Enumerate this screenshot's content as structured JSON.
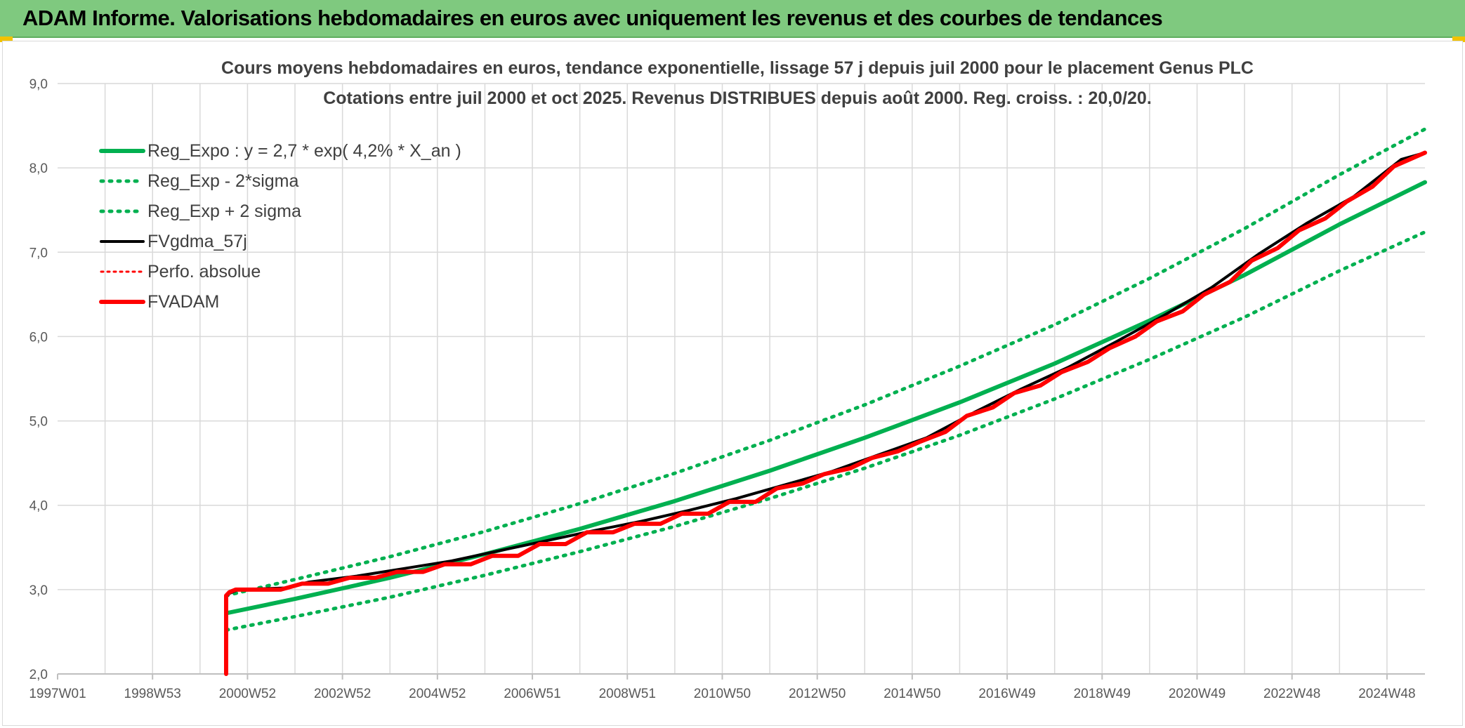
{
  "banner": {
    "title": "ADAM Informe. Valorisations hebdomadaires en euros avec uniquement les revenus et des courbes de tendances"
  },
  "colors": {
    "banner_bg": "#7fc97f",
    "reg_expo": "#00b050",
    "fvadam": "#ff0000",
    "fvgdma": "#000000",
    "grid": "#d9d9d9",
    "corner_accent": "#f2c200"
  },
  "chart_data": {
    "type": "line",
    "title": "Cours moyens hebdomadaires en euros, tendance exponentielle, lissage 57 j depuis juil 2000 pour le placement Genus PLC",
    "subtitle": "Cotations entre juil 2000 et oct 2025. Revenus DISTRIBUES depuis août 2000. Reg. croiss. : 20,0/20.",
    "xlabel": "",
    "ylabel": "",
    "ylim": [
      2.0,
      9.0
    ],
    "xlim": [
      1997.0,
      2025.8
    ],
    "grid": true,
    "legend_position": "top-left",
    "y_ticks": [
      "2,0",
      "3,0",
      "4,0",
      "5,0",
      "6,0",
      "7,0",
      "8,0",
      "9,0"
    ],
    "x_ticks": [
      "1997W01",
      "1998W53",
      "2000W52",
      "2002W52",
      "2004W52",
      "2006W51",
      "2008W51",
      "2010W50",
      "2012W50",
      "2014W50",
      "2016W49",
      "2018W49",
      "2020W49",
      "2022W48",
      "2024W48"
    ],
    "x_tick_years": [
      1997.0,
      1999.0,
      2001.0,
      2003.0,
      2005.0,
      2007.0,
      2009.0,
      2011.0,
      2013.0,
      2015.0,
      2017.0,
      2019.0,
      2021.0,
      2023.0,
      2025.0
    ],
    "legend": [
      {
        "key": "reg_expo",
        "label": "Reg_Expo : y = 2,7 * exp( 4,2% *  X_an )",
        "style": "solid-green"
      },
      {
        "key": "reg_minus",
        "label": "Reg_Exp - 2*sigma",
        "style": "dotted-green"
      },
      {
        "key": "reg_plus",
        "label": "Reg_Exp + 2 sigma",
        "style": "dotted-green"
      },
      {
        "key": "fvgdma",
        "label": "FVgdma_57j",
        "style": "solid-black"
      },
      {
        "key": "perfo",
        "label": "Perfo. absolue",
        "style": "dotted-red"
      },
      {
        "key": "fvadam",
        "label": "FVADAM",
        "style": "solid-red"
      }
    ],
    "series": [
      {
        "name": "Reg_Expo : y = 2,7 * exp( 4,2% *  X_an )",
        "x": [
          2000.55,
          2002.0,
          2004.0,
          2006.0,
          2008.0,
          2010.0,
          2012.0,
          2014.0,
          2016.0,
          2018.0,
          2020.0,
          2022.0,
          2024.0,
          2025.8
        ],
        "y": [
          2.72,
          2.89,
          3.14,
          3.42,
          3.72,
          4.05,
          4.41,
          4.8,
          5.22,
          5.68,
          6.19,
          6.73,
          7.33,
          7.83
        ]
      },
      {
        "name": "Reg_Exp - 2*sigma",
        "x": [
          2000.55,
          2002.0,
          2004.0,
          2006.0,
          2008.0,
          2010.0,
          2012.0,
          2014.0,
          2016.0,
          2018.0,
          2020.0,
          2022.0,
          2024.0,
          2025.8
        ],
        "y": [
          2.52,
          2.68,
          2.91,
          3.17,
          3.45,
          3.75,
          4.08,
          4.44,
          4.83,
          5.26,
          5.73,
          6.23,
          6.78,
          7.24
        ]
      },
      {
        "name": "Reg_Exp + 2 sigma",
        "x": [
          2000.55,
          2002.0,
          2004.0,
          2006.0,
          2008.0,
          2010.0,
          2012.0,
          2014.0,
          2016.0,
          2018.0,
          2020.0,
          2022.0,
          2024.0,
          2025.8
        ],
        "y": [
          2.93,
          3.12,
          3.39,
          3.69,
          4.02,
          4.38,
          4.77,
          5.19,
          5.65,
          6.14,
          6.69,
          7.28,
          7.92,
          8.46
        ]
      },
      {
        "name": "FVADAM",
        "x": [
          2000.55,
          2000.55,
          2000.62,
          2000.75,
          2001.7,
          2002.15,
          2002.7,
          2003.15,
          2003.7,
          2004.15,
          2004.7,
          2005.15,
          2005.7,
          2006.15,
          2006.7,
          2007.15,
          2007.7,
          2008.15,
          2008.7,
          2009.15,
          2009.7,
          2010.15,
          2010.7,
          2011.15,
          2011.7,
          2012.15,
          2012.7,
          2013.15,
          2013.7,
          2014.15,
          2014.7,
          2015.15,
          2015.7,
          2016.15,
          2016.7,
          2017.15,
          2017.7,
          2018.15,
          2018.7,
          2019.15,
          2019.7,
          2020.15,
          2020.7,
          2021.15,
          2021.7,
          2022.15,
          2022.7,
          2023.15,
          2023.7,
          2024.15,
          2024.7,
          2025.15,
          2025.8
        ],
        "y": [
          2.0,
          2.93,
          2.97,
          3.0,
          3.0,
          3.07,
          3.07,
          3.14,
          3.14,
          3.21,
          3.21,
          3.3,
          3.3,
          3.4,
          3.4,
          3.54,
          3.54,
          3.68,
          3.68,
          3.78,
          3.78,
          3.9,
          3.9,
          4.04,
          4.04,
          4.2,
          4.26,
          4.37,
          4.44,
          4.56,
          4.64,
          4.75,
          4.87,
          5.06,
          5.16,
          5.33,
          5.42,
          5.58,
          5.7,
          5.86,
          6.0,
          6.18,
          6.3,
          6.5,
          6.65,
          6.9,
          7.05,
          7.26,
          7.4,
          7.6,
          7.78,
          8.02,
          8.18
        ]
      },
      {
        "name": "FVgdma_57j",
        "x": [
          2000.55,
          2000.6,
          2000.8,
          2001.8,
          2002.3,
          2003.3,
          2004.3,
          2005.3,
          2006.3,
          2007.3,
          2008.3,
          2009.3,
          2010.3,
          2011.3,
          2012.3,
          2013.3,
          2014.3,
          2015.3,
          2016.3,
          2017.3,
          2018.3,
          2019.3,
          2020.3,
          2021.3,
          2022.3,
          2023.3,
          2024.3,
          2025.3,
          2025.8
        ],
        "y": [
          2.9,
          2.95,
          3.0,
          3.02,
          3.09,
          3.16,
          3.25,
          3.34,
          3.46,
          3.58,
          3.7,
          3.81,
          3.94,
          4.08,
          4.24,
          4.4,
          4.6,
          4.8,
          5.1,
          5.38,
          5.64,
          5.94,
          6.25,
          6.58,
          6.98,
          7.34,
          7.66,
          8.1,
          8.18
        ]
      }
    ]
  }
}
